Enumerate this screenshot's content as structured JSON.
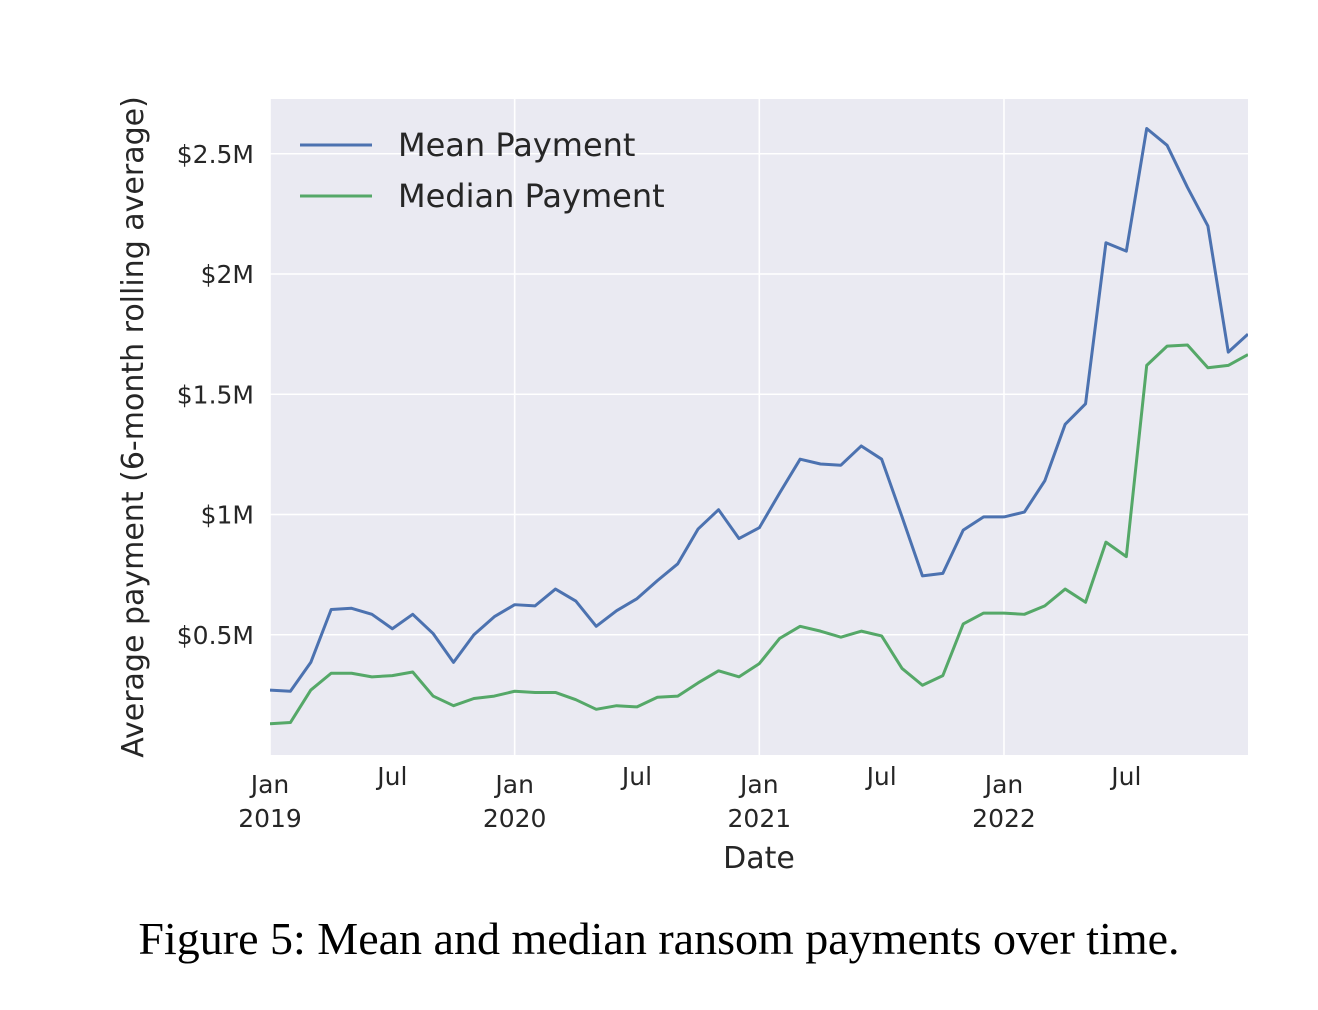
{
  "chart_data": {
    "type": "line",
    "xlabel": "Date",
    "ylabel": "Average payment (6-month rolling average)",
    "x_start": "2019-01",
    "x": [
      "2019-01",
      "2019-02",
      "2019-03",
      "2019-04",
      "2019-05",
      "2019-06",
      "2019-07",
      "2019-08",
      "2019-09",
      "2019-10",
      "2019-11",
      "2019-12",
      "2020-01",
      "2020-02",
      "2020-03",
      "2020-04",
      "2020-05",
      "2020-06",
      "2020-07",
      "2020-08",
      "2020-09",
      "2020-10",
      "2020-11",
      "2020-12",
      "2021-01",
      "2021-02",
      "2021-03",
      "2021-04",
      "2021-05",
      "2021-06",
      "2021-07",
      "2021-08",
      "2021-09",
      "2021-10",
      "2021-11",
      "2021-12",
      "2022-01",
      "2022-02",
      "2022-03",
      "2022-04",
      "2022-05",
      "2022-06",
      "2022-07",
      "2022-08",
      "2022-09",
      "2022-10",
      "2022-11",
      "2022-12",
      "2022-12-31"
    ],
    "ylim": [
      0,
      2.72
    ],
    "y_unit": "millions USD",
    "grid": true,
    "legend": "top-left",
    "series": [
      {
        "name": "Mean Payment",
        "color": "#4c72b0",
        "values": [
          0.27,
          0.265,
          0.385,
          0.605,
          0.61,
          0.585,
          0.525,
          0.585,
          0.505,
          0.385,
          0.5,
          0.575,
          0.625,
          0.62,
          0.69,
          0.64,
          0.535,
          0.6,
          0.65,
          0.725,
          0.795,
          0.94,
          1.02,
          0.9,
          0.945,
          1.09,
          1.23,
          1.21,
          1.205,
          1.285,
          1.23,
          0.99,
          0.745,
          0.755,
          0.935,
          0.99,
          0.99,
          1.01,
          1.14,
          1.375,
          1.46,
          2.13,
          2.095,
          2.605,
          2.535,
          2.36,
          2.2,
          1.675,
          1.75
        ]
      },
      {
        "name": "Median Payment",
        "color": "#55a868",
        "values": [
          0.13,
          0.135,
          0.27,
          0.34,
          0.34,
          0.325,
          0.33,
          0.345,
          0.245,
          0.205,
          0.235,
          0.245,
          0.265,
          0.26,
          0.26,
          0.23,
          0.19,
          0.205,
          0.2,
          0.24,
          0.245,
          0.3,
          0.35,
          0.325,
          0.38,
          0.485,
          0.535,
          0.515,
          0.49,
          0.515,
          0.495,
          0.36,
          0.29,
          0.33,
          0.545,
          0.59,
          0.59,
          0.585,
          0.62,
          0.69,
          0.635,
          0.885,
          0.825,
          1.62,
          1.7,
          1.705,
          1.61,
          1.62,
          1.665
        ]
      }
    ],
    "yticks": [
      {
        "value": 0.5,
        "label": "$0.5M"
      },
      {
        "value": 1.0,
        "label": "$1M"
      },
      {
        "value": 1.5,
        "label": "$1.5M"
      },
      {
        "value": 2.0,
        "label": "$2M"
      },
      {
        "value": 2.5,
        "label": "$2.5M"
      }
    ],
    "xticks": [
      {
        "at": "2019-01",
        "line1": "Jan",
        "line2": "2019"
      },
      {
        "at": "2019-07",
        "line1": "Jul",
        "line2": ""
      },
      {
        "at": "2020-01",
        "line1": "Jan",
        "line2": "2020"
      },
      {
        "at": "2020-07",
        "line1": "Jul",
        "line2": ""
      },
      {
        "at": "2021-01",
        "line1": "Jan",
        "line2": "2021"
      },
      {
        "at": "2021-07",
        "line1": "Jul",
        "line2": ""
      },
      {
        "at": "2022-01",
        "line1": "Jan",
        "line2": "2022"
      },
      {
        "at": "2022-07",
        "line1": "Jul",
        "line2": ""
      }
    ]
  },
  "caption": "Figure 5: Mean and median ransom payments over time."
}
